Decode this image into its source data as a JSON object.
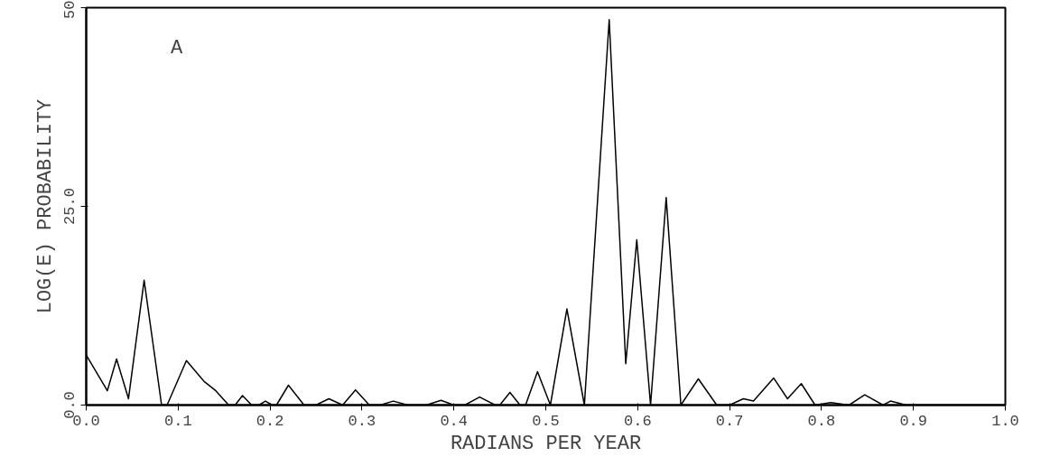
{
  "chart_data": {
    "type": "line",
    "xlabel": "RADIANS PER YEAR",
    "ylabel": "LOG(E) PROBABILITY",
    "annotations": [
      "A"
    ],
    "x": [
      0.0,
      0.023,
      0.033,
      0.046,
      0.063,
      0.082,
      0.088,
      0.109,
      0.128,
      0.141,
      0.155,
      0.162,
      0.17,
      0.18,
      0.188,
      0.195,
      0.202,
      0.207,
      0.22,
      0.237,
      0.25,
      0.264,
      0.279,
      0.293,
      0.308,
      0.32,
      0.334,
      0.35,
      0.37,
      0.386,
      0.4,
      0.412,
      0.428,
      0.445,
      0.45,
      0.461,
      0.472,
      0.478,
      0.491,
      0.505,
      0.523,
      0.542,
      0.569,
      0.587,
      0.599,
      0.614,
      0.631,
      0.647,
      0.666,
      0.686,
      0.7,
      0.715,
      0.726,
      0.748,
      0.763,
      0.778,
      0.793,
      0.81,
      0.83,
      0.847,
      0.867,
      0.875,
      0.892,
      0.95,
      1.0
    ],
    "values": [
      6.3,
      1.8,
      5.8,
      0.8,
      15.7,
      0.0,
      0.0,
      5.6,
      3.0,
      1.8,
      0.0,
      0.0,
      1.2,
      0.0,
      0.0,
      0.5,
      0.0,
      0.0,
      2.5,
      0.0,
      0.0,
      0.8,
      0.0,
      1.9,
      0.0,
      0.0,
      0.5,
      0.0,
      0.0,
      0.6,
      0.0,
      0.0,
      1.0,
      0.0,
      0.0,
      1.6,
      0.0,
      0.0,
      4.2,
      0.0,
      12.1,
      0.0,
      48.5,
      5.2,
      20.8,
      0.0,
      26.1,
      0.0,
      3.3,
      0.0,
      0.0,
      0.8,
      0.5,
      3.4,
      0.8,
      2.7,
      0.0,
      0.3,
      0.0,
      1.3,
      0.0,
      0.5,
      0.0,
      0.0,
      0.0
    ],
    "color": "#000000",
    "xlim": [
      0.0,
      1.0
    ],
    "ylim": [
      0.0,
      50
    ],
    "xticks": [
      {
        "value": 0.0,
        "label": "0.0"
      },
      0.1,
      0.2,
      0.3,
      0.4,
      0.5,
      0.6,
      0.7,
      0.8,
      0.9,
      {
        "value": 1.0,
        "label": "1.0"
      }
    ],
    "yticks": [
      {
        "value": 0,
        "label": "0.0"
      },
      {
        "value": 25,
        "label": "25.0"
      },
      50
    ],
    "grid": false
  }
}
